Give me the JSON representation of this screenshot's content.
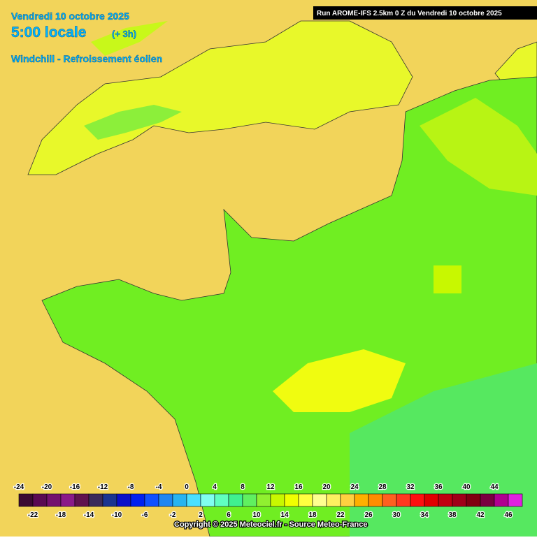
{
  "header": {
    "date": "Vendredi 10 octobre 2025",
    "time": "5:00 locale",
    "offset": "(+ 3h)",
    "parameter": "Windchill - Refroissement éolien",
    "run": "Run AROME-IFS 2.5km 0 Z du Vendredi 10 octobre 2025"
  },
  "legend": {
    "labels_top": [
      "-24",
      "-20",
      "-16",
      "-12",
      "-8",
      "-4",
      "0",
      "4",
      "8",
      "12",
      "16",
      "20",
      "24",
      "28",
      "32",
      "36",
      "40",
      "44"
    ],
    "labels_bottom": [
      "-22",
      "-18",
      "-14",
      "-10",
      "-6",
      "-2",
      "2",
      "6",
      "10",
      "14",
      "18",
      "22",
      "26",
      "30",
      "34",
      "38",
      "42",
      "46"
    ],
    "colors": [
      "#3c0a32",
      "#5a0a52",
      "#74106e",
      "#8a1a88",
      "#60124e",
      "#3a2a5a",
      "#1a3490",
      "#0a10c8",
      "#0020f0",
      "#1050ff",
      "#1e86f0",
      "#28b4f0",
      "#4ae0ff",
      "#80fff0",
      "#60ffc0",
      "#40f090",
      "#60f060",
      "#90f030",
      "#c8f800",
      "#f0ff00",
      "#ffff40",
      "#ffff90",
      "#fff060",
      "#ffd040",
      "#ffb000",
      "#ff8c00",
      "#ff6020",
      "#ff3820",
      "#ff1010",
      "#e00000",
      "#c00010",
      "#a00018",
      "#800010",
      "#7a0040",
      "#b00090",
      "#e020e0"
    ]
  },
  "footer": {
    "copyright": "Copyright © 2025 Meteociel.fr - Source Meteo-France"
  }
}
